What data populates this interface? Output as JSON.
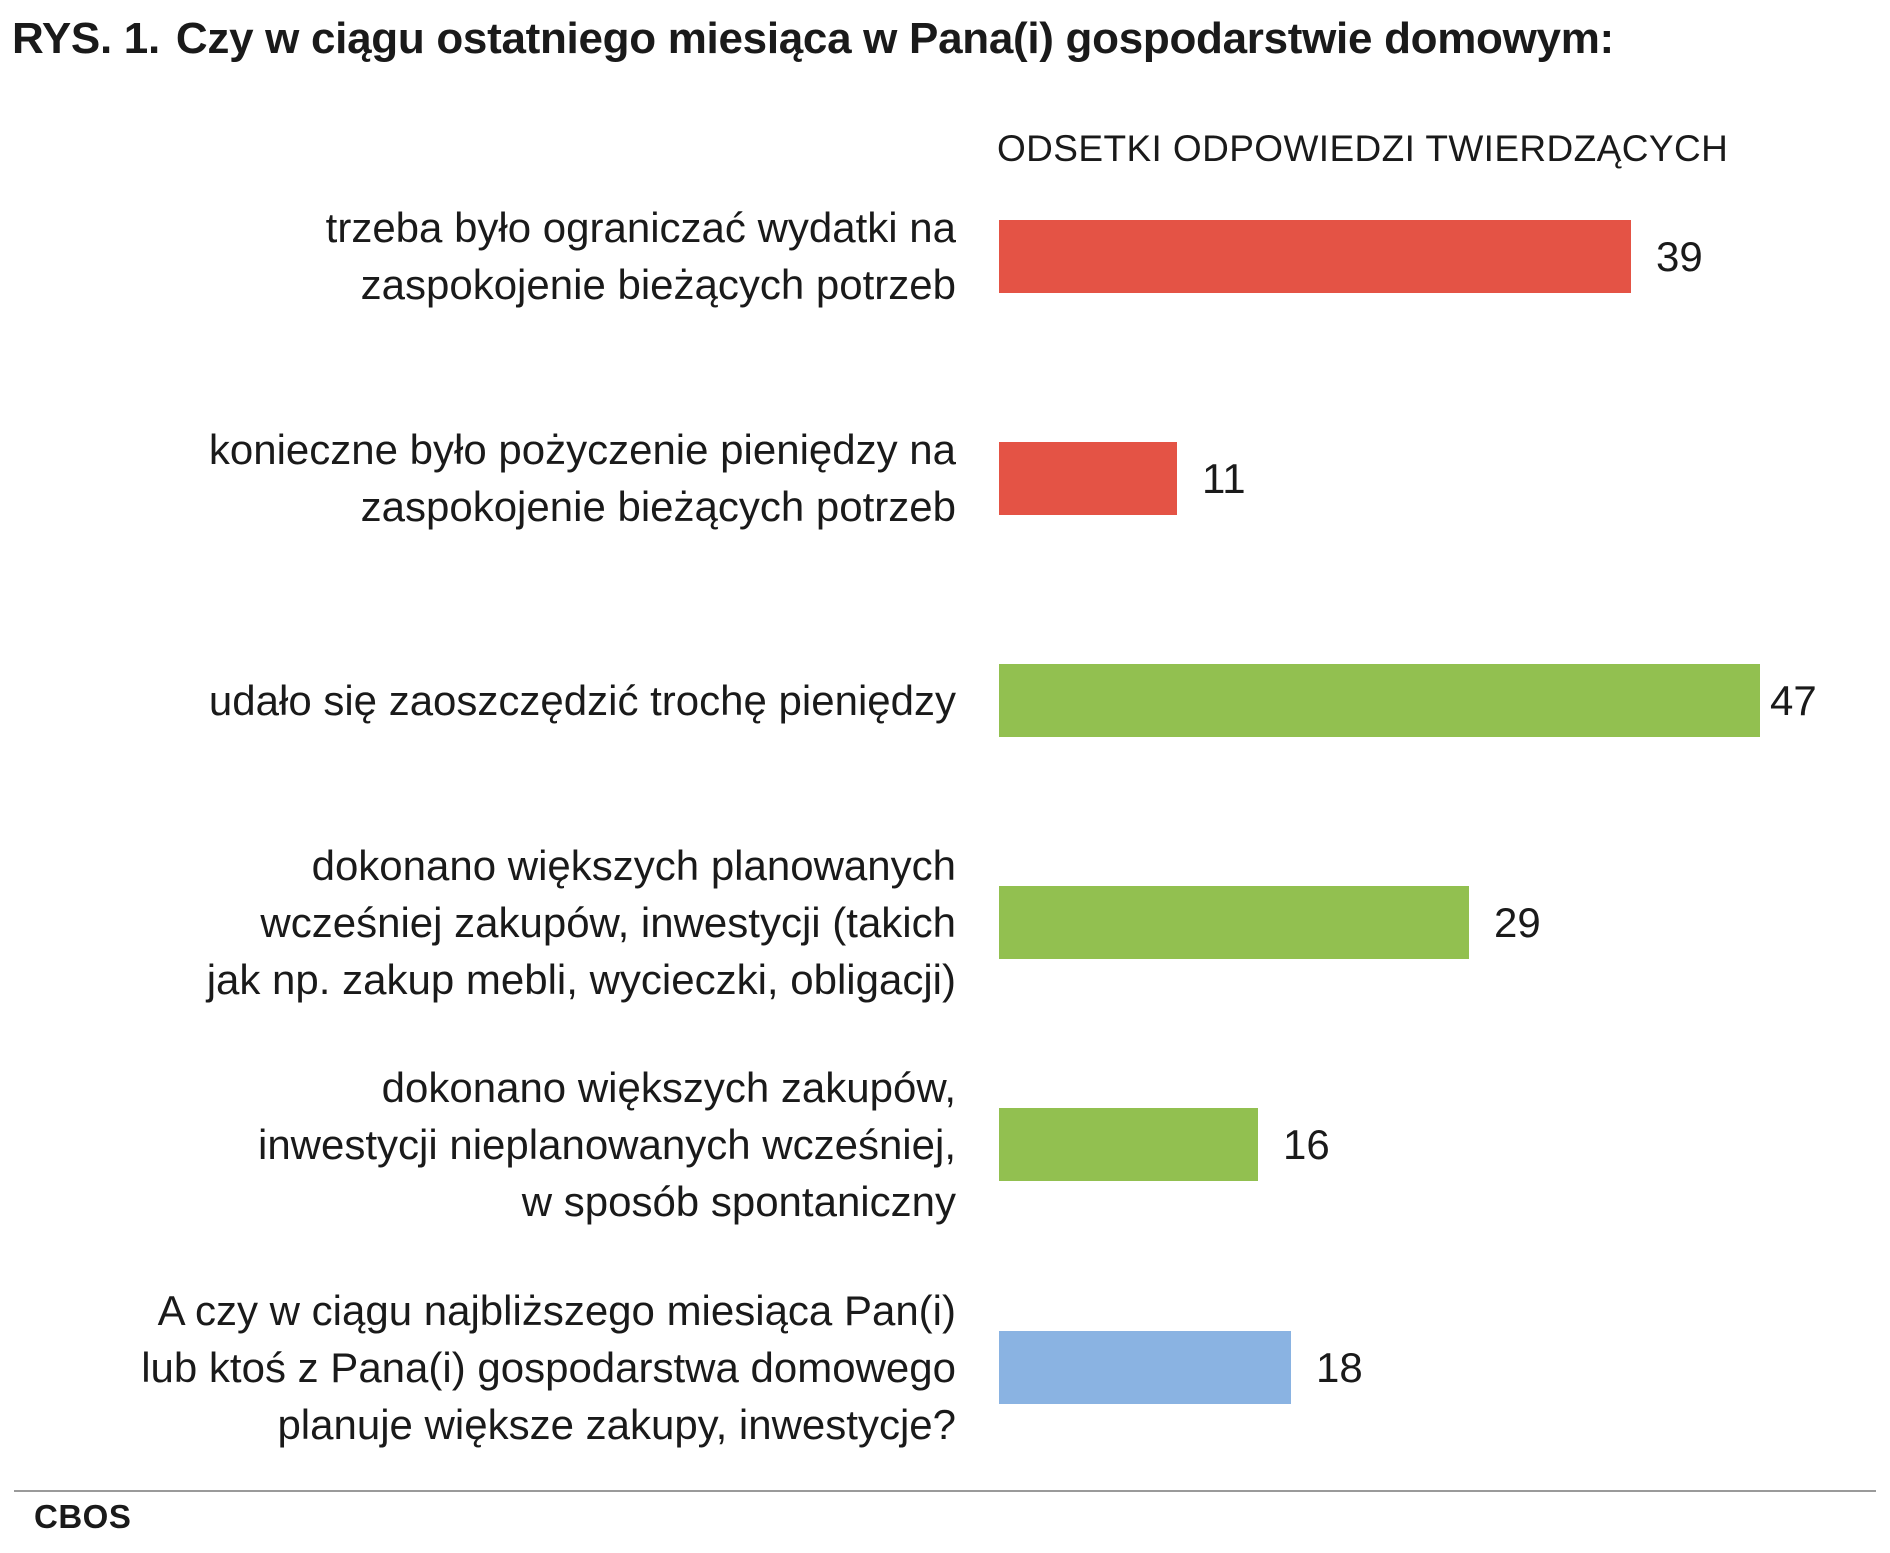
{
  "header": {
    "figure_number": "RYS. 1.",
    "title": "Czy w ciągu ostatniego miesiąca w Pana(i) gospodarstwie domowym:"
  },
  "chart_data": {
    "type": "bar",
    "orientation": "horizontal",
    "subtitle": "ODSETKI ODPOWIEDZI TWIERDZĄCYCH",
    "categories": [
      [
        "trzeba było ograniczać wydatki na",
        "zaspokojenie bieżących potrzeb"
      ],
      [
        "konieczne było pożyczenie pieniędzy na",
        "zaspokojenie bieżących potrzeb"
      ],
      [
        "udało się zaoszczędzić trochę pieniędzy"
      ],
      [
        "dokonano większych planowanych",
        "wcześniej zakupów, inwestycji (takich",
        "jak np. zakup mebli, wycieczki, obligacji)"
      ],
      [
        "dokonano większych zakupów,",
        "inwestycji nieplanowanych wcześniej,",
        "w sposób spontaniczny"
      ],
      [
        "A czy w ciągu najbliższego miesiąca Pan(i)",
        "lub ktoś z Pana(i) gospodarstwa domowego",
        "planuje większe zakupy, inwestycje?"
      ]
    ],
    "values": [
      39,
      11,
      47,
      29,
      16,
      18
    ],
    "bar_colors": [
      "#e45345",
      "#e45345",
      "#92c050",
      "#92c050",
      "#92c050",
      "#8ab3e2"
    ],
    "grid": false,
    "legend": "none"
  },
  "footer": {
    "source": "CBOS"
  }
}
